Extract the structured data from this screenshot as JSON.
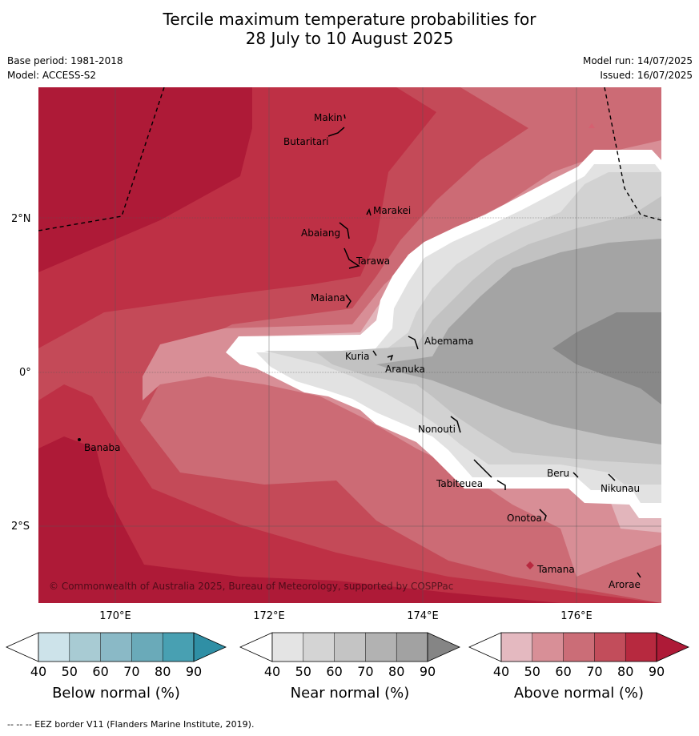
{
  "title": {
    "line1": "Tercile maximum temperature probabilities for",
    "line2": "28 July to 10 August 2025"
  },
  "meta": {
    "base_period": "Base period: 1981-2018",
    "model": "Model: ACCESS-S2",
    "model_run": "Model run: 14/07/2025",
    "issued": "Issued: 16/07/2025"
  },
  "map": {
    "lon_labels": [
      "170°E",
      "172°E",
      "174°E",
      "176°E"
    ],
    "lat_labels": [
      "2°N",
      "0°",
      "2°S"
    ],
    "copyright": "© Commonwealth of Australia 2025, Bureau of Meteorology, supported by COSPPac",
    "islands": [
      "Makin",
      "Butaritari",
      "Marakei",
      "Abaiang",
      "Tarawa",
      "Maiana",
      "Abemama",
      "Kuria",
      "Aranuka",
      "Banaba",
      "Nonouti",
      "Tabiteuea",
      "Beru",
      "Nikunau",
      "Onotoa",
      "Tamana",
      "Arorae"
    ]
  },
  "legends": [
    {
      "label": "Below normal (%)",
      "ticks": [
        "40",
        "50",
        "60",
        "70",
        "80",
        "90"
      ],
      "colors": [
        "#ffffff",
        "#cde3ea",
        "#a8cbd3",
        "#8ab9c6",
        "#6aaab9",
        "#48a0b2",
        "#2f8fa5"
      ]
    },
    {
      "label": "Near normal (%)",
      "ticks": [
        "40",
        "50",
        "60",
        "70",
        "80",
        "90"
      ],
      "colors": [
        "#ffffff",
        "#e4e4e4",
        "#d4d4d4",
        "#c4c4c4",
        "#b2b2b2",
        "#a2a2a2",
        "#858585"
      ]
    },
    {
      "label": "Above normal (%)",
      "ticks": [
        "40",
        "50",
        "60",
        "70",
        "80",
        "90"
      ],
      "colors": [
        "#ffffff",
        "#e4b9c0",
        "#d88f97",
        "#cb6d77",
        "#c24d5b",
        "#b7293f",
        "#ae1a37"
      ]
    }
  ],
  "footer": "--  --  -- EEZ border V11 (Flanders Marine Institute, 2019)."
}
